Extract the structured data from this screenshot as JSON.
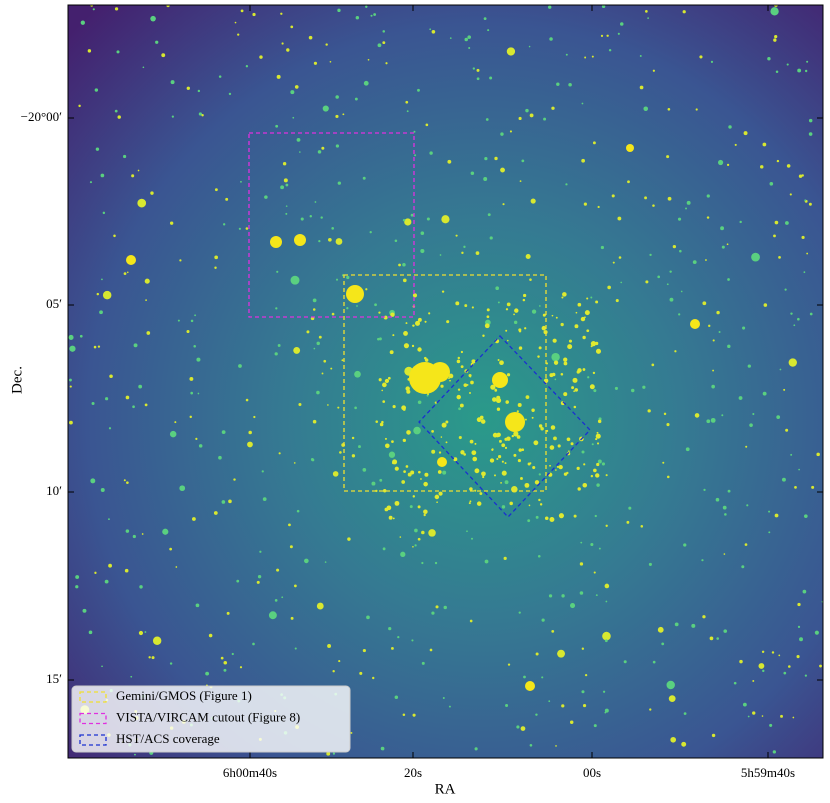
{
  "figure": {
    "xlabel": "RA",
    "ylabel": "Dec.",
    "xticks": [
      "6h00m40s",
      "20s",
      "00s",
      "5h59m40s"
    ],
    "yticks": [
      "−20°00′",
      "05′",
      "10′",
      "15′"
    ],
    "legend": [
      "Gemini/GMOS (Figure 1)",
      "VISTA/VIRCAM cutout (Figure 8)",
      "HST/ACS coverage"
    ]
  }
}
